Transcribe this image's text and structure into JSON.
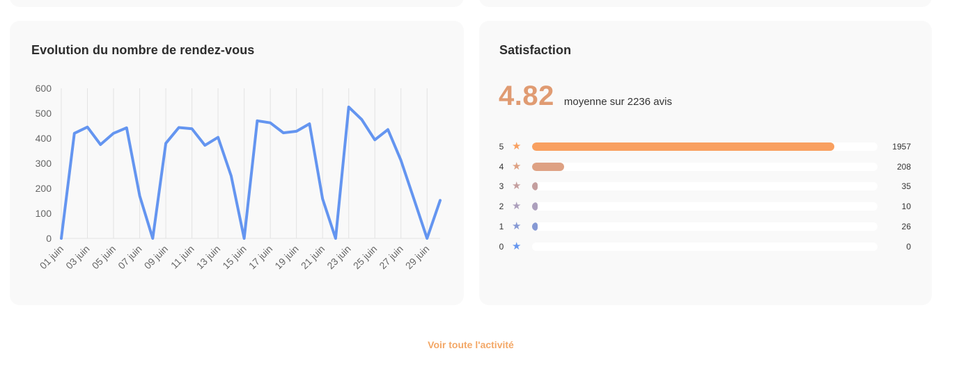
{
  "chart_card": {
    "title": "Evolution du nombre de rendez-vous"
  },
  "chart_data": {
    "type": "line",
    "title": "Evolution du nombre de rendez-vous",
    "x": [
      "01 juin",
      "02 juin",
      "03 juin",
      "04 juin",
      "05 juin",
      "06 juin",
      "07 juin",
      "08 juin",
      "09 juin",
      "10 juin",
      "11 juin",
      "12 juin",
      "13 juin",
      "14 juin",
      "15 juin",
      "16 juin",
      "17 juin",
      "18 juin",
      "19 juin",
      "20 juin",
      "21 juin",
      "22 juin",
      "23 juin",
      "24 juin",
      "25 juin",
      "26 juin",
      "27 juin",
      "28 juin",
      "29 juin",
      "30 juin"
    ],
    "tick_labels": [
      "01 juin",
      "03 juin",
      "05 juin",
      "07 juin",
      "09 juin",
      "11 juin",
      "13 juin",
      "15 juin",
      "17 juin",
      "19 juin",
      "21 juin",
      "23 juin",
      "25 juin",
      "27 juin",
      "29 juin"
    ],
    "series": [
      {
        "values": [
          0,
          420,
          445,
          375,
          420,
          442,
          170,
          0,
          380,
          443,
          438,
          372,
          404,
          250,
          0,
          470,
          462,
          422,
          428,
          458,
          158,
          0,
          525,
          475,
          394,
          435,
          312,
          156,
          0,
          152
        ]
      }
    ],
    "ylim": [
      0,
      600
    ],
    "y_ticks": [
      "0",
      "100",
      "200",
      "300",
      "400",
      "500",
      "600"
    ],
    "grid": "vertical",
    "color": "#6495f0"
  },
  "satisfaction": {
    "title": "Satisfaction",
    "average": "4.82",
    "average_text": "moyenne sur 2236 avis",
    "total": 2236,
    "ratings": [
      {
        "label": "5",
        "count": 1957,
        "count_text": "1957",
        "color": "#f9a060"
      },
      {
        "label": "4",
        "count": 208,
        "count_text": "208",
        "color": "#dea183"
      },
      {
        "label": "3",
        "count": 35,
        "count_text": "35",
        "color": "#c49e9e"
      },
      {
        "label": "2",
        "count": 10,
        "count_text": "10",
        "color": "#ac9fbc"
      },
      {
        "label": "1",
        "count": 26,
        "count_text": "26",
        "color": "#8699d4"
      },
      {
        "label": "0",
        "count": 0,
        "count_text": "0",
        "color": "#6596ef"
      }
    ]
  },
  "footer": {
    "link_label": "Voir toute l'activité"
  }
}
